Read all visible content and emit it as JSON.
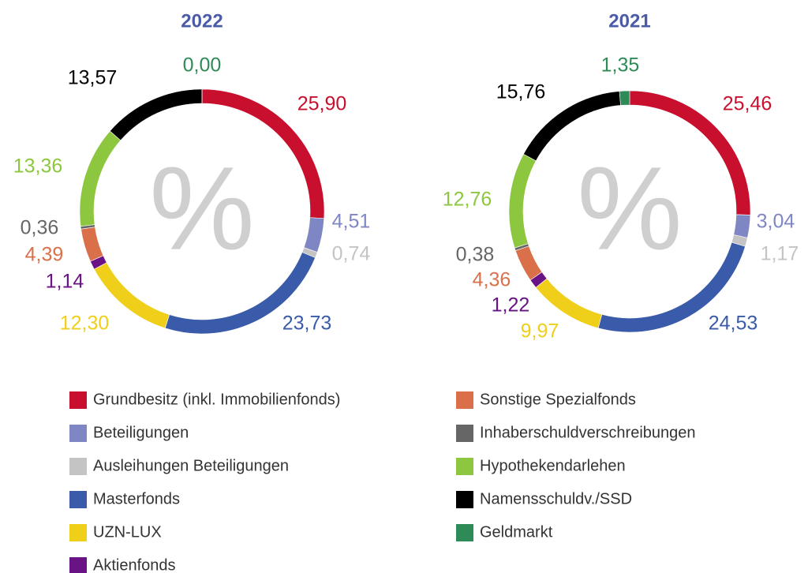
{
  "chart_data": [
    {
      "type": "donut",
      "title": "2022",
      "center_label": "%",
      "categories": [
        "Grundbesitz (inkl. Immobilienfonds)",
        "Beteiligungen",
        "Ausleihungen Beteiligungen",
        "Masterfonds",
        "UZN-LUX",
        "Aktienfonds",
        "Sonstige Spezialfonds",
        "Inhaberschuldverschreibungen",
        "Hypothekendarlehen",
        "Namensschuldv./SSD",
        "Geldmarkt"
      ],
      "values": [
        25.9,
        4.51,
        0.74,
        23.73,
        12.3,
        1.14,
        4.39,
        0.36,
        13.36,
        13.57,
        0.0
      ],
      "value_labels": [
        "25,90",
        "4,51",
        "0,74",
        "23,73",
        "12,30",
        "1,14",
        "4,39",
        "0,36",
        "13,36",
        "13,57",
        "0,00"
      ],
      "colors": [
        "#c8102e",
        "#7f86c4",
        "#c4c4c4",
        "#3a5ba9",
        "#efcf1a",
        "#6a1385",
        "#d9704a",
        "#666666",
        "#8dc63f",
        "#000000",
        "#2e8b57"
      ]
    },
    {
      "type": "donut",
      "title": "2021",
      "center_label": "%",
      "categories": [
        "Grundbesitz (inkl. Immobilienfonds)",
        "Beteiligungen",
        "Ausleihungen Beteiligungen",
        "Masterfonds",
        "UZN-LUX",
        "Aktienfonds",
        "Sonstige Spezialfonds",
        "Inhaberschuldverschreibungen",
        "Hypothekendarlehen",
        "Namensschuldv./SSD",
        "Geldmarkt"
      ],
      "values": [
        25.46,
        3.04,
        1.17,
        24.53,
        9.97,
        1.22,
        4.36,
        0.38,
        12.76,
        15.76,
        1.35
      ],
      "value_labels": [
        "25,46",
        "3,04",
        "1,17",
        "24,53",
        "9,97",
        "1,22",
        "4,36",
        "0,38",
        "12,76",
        "15,76",
        "1,35"
      ],
      "colors": [
        "#c8102e",
        "#7f86c4",
        "#c4c4c4",
        "#3a5ba9",
        "#efcf1a",
        "#6a1385",
        "#d9704a",
        "#666666",
        "#8dc63f",
        "#000000",
        "#2e8b57"
      ]
    }
  ]
}
